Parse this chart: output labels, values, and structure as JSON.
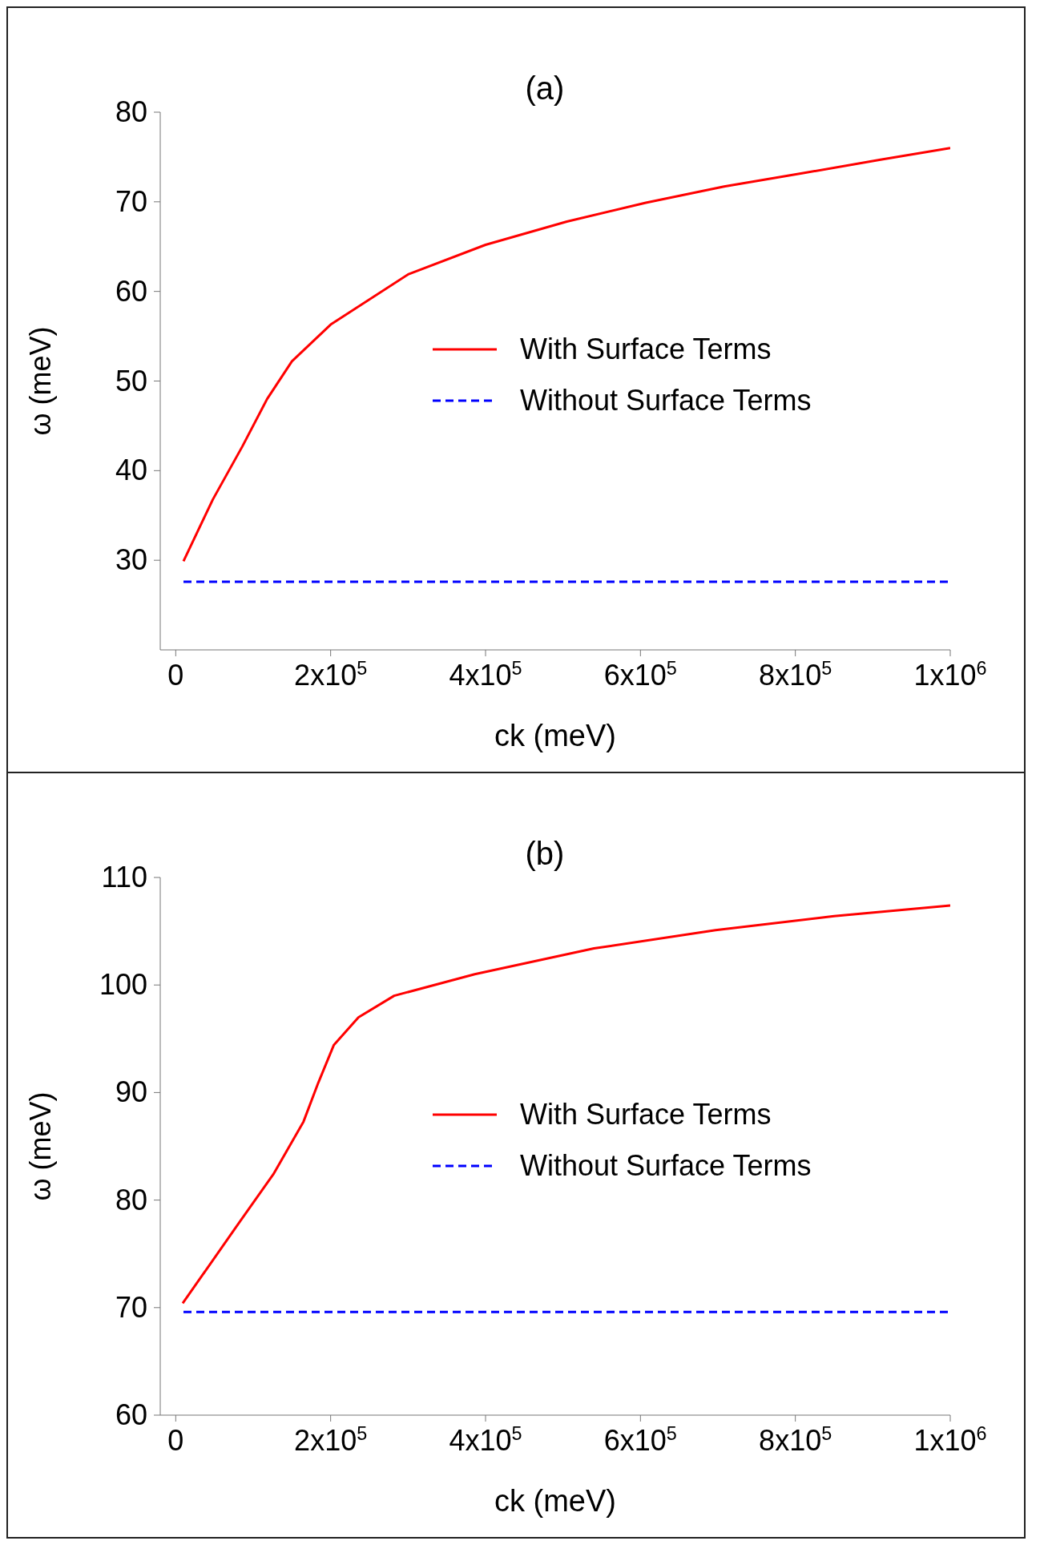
{
  "chart_data": [
    {
      "type": "line",
      "title": "(a)",
      "xlabel": "ck (meV)",
      "ylabel": "ω (meV)",
      "xlim": [
        -20000,
        1000000
      ],
      "ylim": [
        20,
        80
      ],
      "xticks": [
        0,
        {
          "value": 200000,
          "label": "2x10$^{5}$"
        },
        {
          "value": 400000,
          "label": "4x10$^{5}$"
        },
        {
          "value": 600000,
          "label": "6x10$^{5}$"
        },
        {
          "value": 800000,
          "label": "8x10$^{5}$"
        },
        {
          "value": 1000000,
          "label": "1x10$^{6}$"
        }
      ],
      "yticks": [
        30,
        40,
        50,
        60,
        70,
        80
      ],
      "legend": "right",
      "marker": "none",
      "series": [
        {
          "name": "With Surface Terms",
          "color": "#ff0000",
          "line_style": "solid",
          "x": [
            10000,
            48000,
            86000,
            118000,
            150000,
            200000,
            300000,
            400000,
            505000,
            607000,
            708000,
            810000,
            910000,
            1000000
          ],
          "values": [
            29.9,
            36.8,
            42.7,
            48,
            52.2,
            56.3,
            61.9,
            65.2,
            67.8,
            69.9,
            71.7,
            73.2,
            74.7,
            76
          ]
        },
        {
          "name": "Without Surface Terms",
          "color": "#0000ff",
          "line_style": "dashed",
          "x": [
            10000,
            1000000
          ],
          "values": [
            27.6,
            27.6
          ]
        }
      ]
    },
    {
      "type": "line",
      "title": "(b)",
      "xlabel": "ck (meV)",
      "ylabel": "ω (meV)",
      "xlim": [
        -20000,
        1000000
      ],
      "ylim": [
        60,
        110
      ],
      "xticks": [
        0,
        {
          "value": 200000,
          "label": "2x10$^{5}$"
        },
        {
          "value": 400000,
          "label": "4x10$^{5}$"
        },
        {
          "value": 600000,
          "label": "6x10$^{5}$"
        },
        {
          "value": 800000,
          "label": "8x10$^{5}$"
        },
        {
          "value": 1000000,
          "label": "1x10$^{6}$"
        }
      ],
      "yticks": [
        60,
        70,
        80,
        90,
        100,
        110
      ],
      "legend": "right",
      "marker": "none",
      "series": [
        {
          "name": "With Surface Terms",
          "color": "#ff0000",
          "line_style": "solid",
          "x": [
            9000,
            74000,
            126000,
            165000,
            184000,
            204000,
            236000,
            282000,
            386000,
            540000,
            697000,
            850000,
            1000000
          ],
          "values": [
            70.4,
            77.1,
            82.4,
            87.3,
            90.9,
            94.4,
            97,
            99,
            101,
            103.4,
            105.1,
            106.4,
            107.4
          ]
        },
        {
          "name": "Without Surface Terms",
          "color": "#0000ff",
          "line_style": "dashed",
          "x": [
            10000,
            1000000
          ],
          "values": [
            69.6,
            69.6
          ]
        }
      ]
    }
  ]
}
